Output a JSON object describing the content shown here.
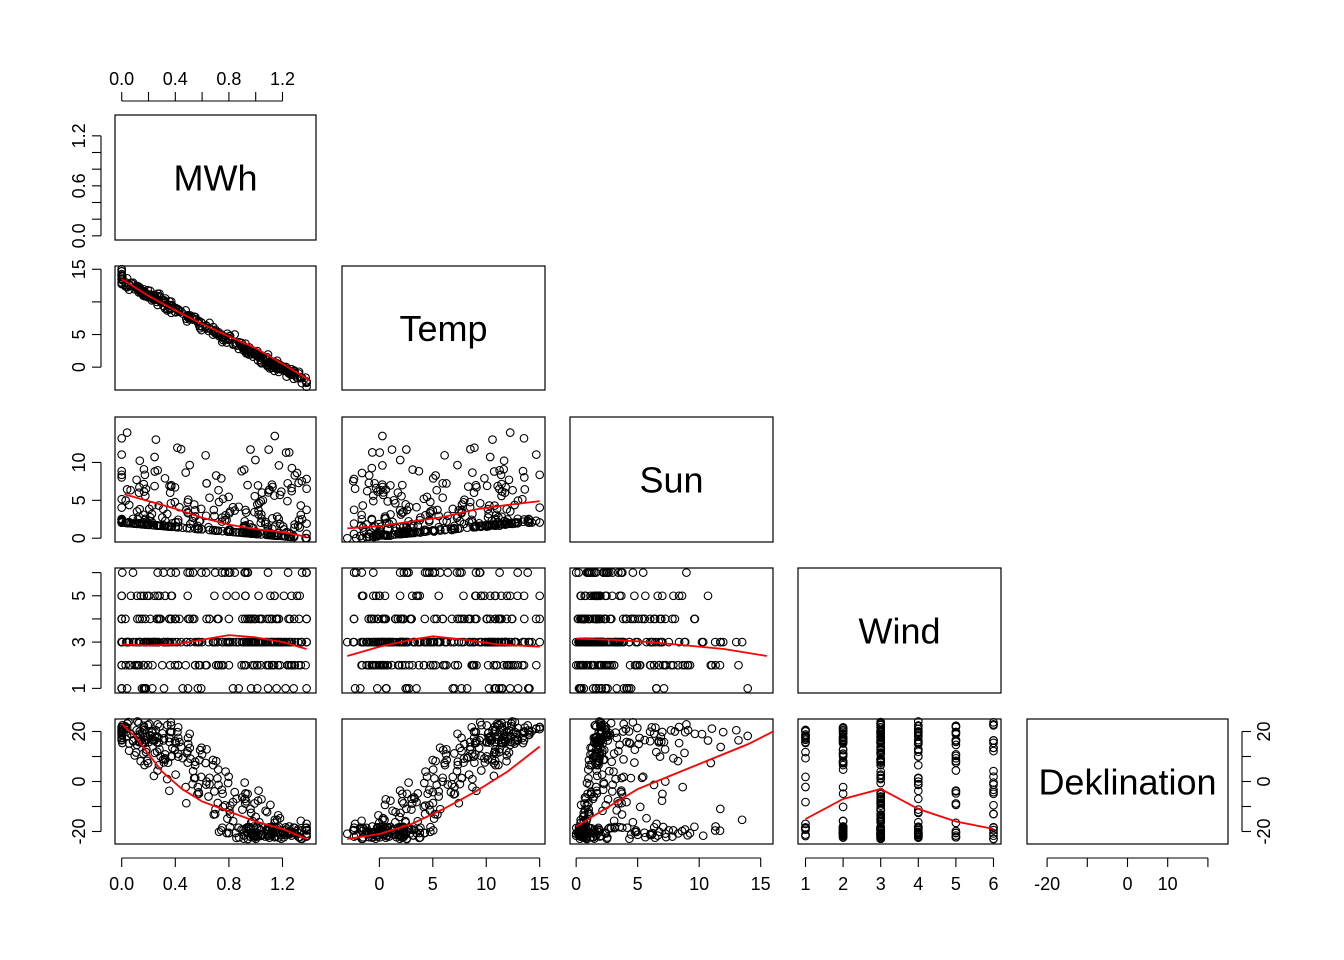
{
  "chart_data": {
    "type": "scatter",
    "variables": [
      "MWh",
      "Temp",
      "Sun",
      "Wind",
      "Deklination"
    ],
    "ranges": {
      "MWh": [
        -0.05,
        1.45
      ],
      "Temp": [
        -3.5,
        15.5
      ],
      "Sun": [
        -0.5,
        16
      ],
      "Wind": [
        0.8,
        6.2
      ],
      "Deklination": [
        -25,
        25
      ]
    },
    "ticks": {
      "MWh": {
        "top": [
          "0.0",
          "0.4",
          "0.8",
          "1.2"
        ],
        "bottom": [
          "0.0",
          "0.4",
          "0.8",
          "1.2"
        ],
        "left": [
          "0.0",
          "0.6",
          "1.2"
        ],
        "top_minor": [
          0.2,
          0.6,
          1.0
        ],
        "left_minor": [
          0.2,
          0.4,
          0.8,
          1.0
        ]
      },
      "Temp": {
        "bottom": [
          "0",
          "5",
          "10",
          "15"
        ],
        "left": [
          "0",
          "5",
          "15"
        ],
        "left_minor": [
          10
        ]
      },
      "Sun": {
        "bottom": [
          "0",
          "5",
          "10",
          "15"
        ],
        "left": [
          "0",
          "5",
          "10"
        ]
      },
      "Wind": {
        "bottom": [
          "1",
          "2",
          "3",
          "4",
          "5",
          "6"
        ],
        "left": [
          "1",
          "3",
          "5"
        ],
        "left_minor": [
          2,
          4,
          6
        ]
      },
      "Deklination": {
        "bottom": [
          "-20",
          "0",
          "10"
        ],
        "bottom_minor": [
          -10,
          20
        ],
        "left": [
          "-20",
          "0",
          "20"
        ],
        "left_minor": [
          -10,
          10
        ],
        "right": [
          "-20",
          "0",
          "20"
        ],
        "right_minor": [
          -10,
          10
        ]
      }
    },
    "smoother_color": "#ff0000",
    "point_color": "#000000",
    "smoothers": {
      "Temp|MWh": [
        [
          0.0,
          13.5
        ],
        [
          0.2,
          10.9
        ],
        [
          0.4,
          8.7
        ],
        [
          0.6,
          6.6
        ],
        [
          0.8,
          4.7
        ],
        [
          1.0,
          2.9
        ],
        [
          1.2,
          0.5
        ],
        [
          1.4,
          -2.0
        ]
      ],
      "Sun|MWh": [
        [
          0.02,
          5.8
        ],
        [
          0.2,
          4.9
        ],
        [
          0.4,
          3.9
        ],
        [
          0.6,
          2.7
        ],
        [
          0.8,
          1.8
        ],
        [
          1.0,
          1.2
        ],
        [
          1.2,
          0.8
        ],
        [
          1.38,
          0.2
        ]
      ],
      "Sun|Temp": [
        [
          -3,
          1.3
        ],
        [
          0,
          1.6
        ],
        [
          3,
          2.2
        ],
        [
          6,
          2.8
        ],
        [
          9,
          3.8
        ],
        [
          12,
          4.4
        ],
        [
          15,
          4.9
        ]
      ],
      "Wind|MWh": [
        [
          0.0,
          2.9
        ],
        [
          0.2,
          2.85
        ],
        [
          0.4,
          2.9
        ],
        [
          0.6,
          3.1
        ],
        [
          0.8,
          3.3
        ],
        [
          1.0,
          3.2
        ],
        [
          1.2,
          3.0
        ],
        [
          1.38,
          2.7
        ]
      ],
      "Wind|Temp": [
        [
          -3,
          2.4
        ],
        [
          0,
          2.8
        ],
        [
          3,
          3.1
        ],
        [
          5,
          3.25
        ],
        [
          8,
          3.1
        ],
        [
          11,
          2.9
        ],
        [
          15,
          2.8
        ]
      ],
      "Wind|Sun": [
        [
          0,
          3.15
        ],
        [
          3,
          3.1
        ],
        [
          6,
          3.0
        ],
        [
          9,
          2.85
        ],
        [
          12,
          2.7
        ],
        [
          15.5,
          2.4
        ]
      ],
      "Deklination|MWh": [
        [
          0.0,
          23
        ],
        [
          0.1,
          18
        ],
        [
          0.2,
          11
        ],
        [
          0.3,
          4
        ],
        [
          0.45,
          -3
        ],
        [
          0.6,
          -8
        ],
        [
          0.8,
          -12
        ],
        [
          1.0,
          -16
        ],
        [
          1.2,
          -19
        ],
        [
          1.38,
          -23
        ]
      ],
      "Deklination|Temp": [
        [
          -3,
          -23
        ],
        [
          0,
          -21
        ],
        [
          3,
          -17
        ],
        [
          6,
          -11
        ],
        [
          9,
          -4
        ],
        [
          12,
          4
        ],
        [
          15,
          14
        ]
      ],
      "Deklination|Sun": [
        [
          0,
          -18
        ],
        [
          2,
          -12
        ],
        [
          5,
          -3
        ],
        [
          8,
          3
        ],
        [
          11,
          9
        ],
        [
          14,
          15
        ],
        [
          16,
          20
        ]
      ],
      "Deklination|Wind": [
        [
          1,
          -15
        ],
        [
          2,
          -7
        ],
        [
          3,
          -3
        ],
        [
          4,
          -11
        ],
        [
          5,
          -16
        ],
        [
          6,
          -19
        ]
      ]
    }
  }
}
